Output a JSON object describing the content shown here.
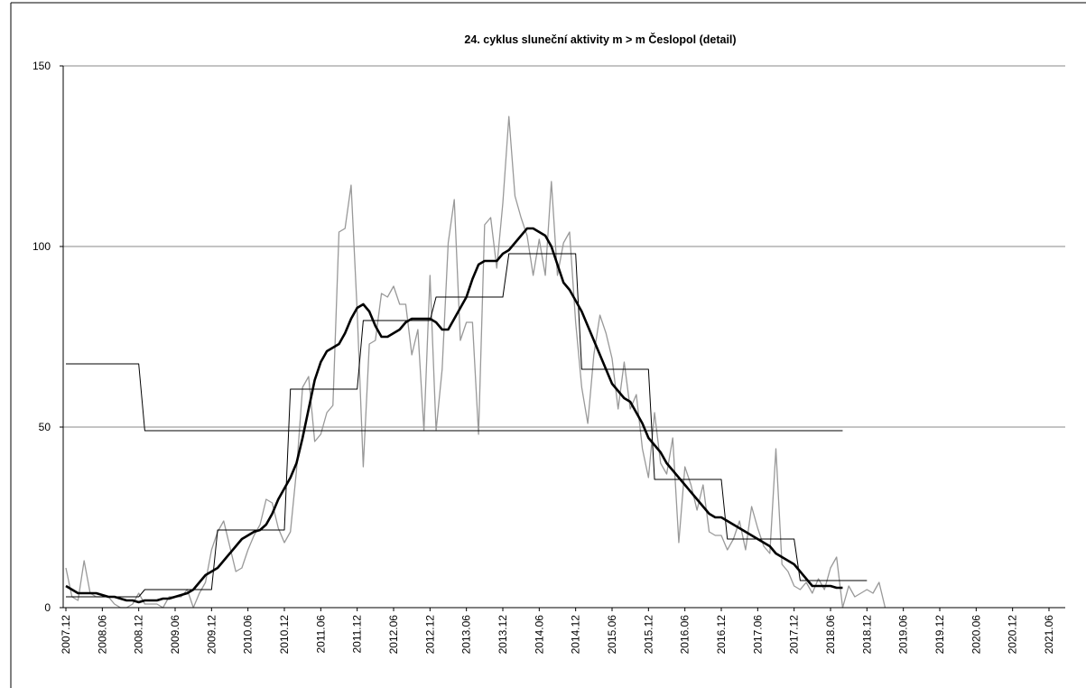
{
  "chart_data": {
    "type": "line",
    "title": "24. cyklus sluneční aktivity m > m Česlopol (detail)",
    "categories": [
      "2007.12",
      null,
      null,
      null,
      null,
      null,
      "2008.06",
      null,
      null,
      null,
      null,
      null,
      "2008.12",
      null,
      null,
      null,
      null,
      null,
      "2009.06",
      null,
      null,
      null,
      null,
      null,
      "2009.12",
      null,
      null,
      null,
      null,
      null,
      "2010.06",
      null,
      null,
      null,
      null,
      null,
      "2010.12",
      null,
      null,
      null,
      null,
      null,
      "2011.06",
      null,
      null,
      null,
      null,
      null,
      "2011.12",
      null,
      null,
      null,
      null,
      null,
      "2012.06",
      null,
      null,
      null,
      null,
      null,
      "2012.12",
      null,
      null,
      null,
      null,
      null,
      "2013.06",
      null,
      null,
      null,
      null,
      null,
      "2013.12",
      null,
      null,
      null,
      null,
      null,
      "2014.06",
      null,
      null,
      null,
      null,
      null,
      "2014.12",
      null,
      null,
      null,
      null,
      null,
      "2015.06",
      null,
      null,
      null,
      null,
      null,
      "2015.12",
      null,
      null,
      null,
      null,
      null,
      "2016.06",
      null,
      null,
      null,
      null,
      null,
      "2016.12",
      null,
      null,
      null,
      null,
      null,
      "2017.06",
      null,
      null,
      null,
      null,
      null,
      "2017.12",
      null,
      null,
      null,
      null,
      null,
      "2018.06",
      null,
      null,
      null,
      null,
      null,
      "2018.12",
      null,
      null,
      null,
      null,
      null,
      "2019.06",
      null,
      null,
      null,
      null,
      null,
      "2019.12",
      null,
      null,
      null,
      null,
      null,
      "2020.06",
      null,
      null,
      null,
      null,
      null,
      "2020.12",
      null,
      null,
      null,
      null,
      null,
      "2021.06"
    ],
    "ylim": [
      0,
      150
    ],
    "yticks": [
      0,
      50,
      100,
      150
    ],
    "grid": true,
    "series": [
      {
        "color": "#999999",
        "width": 1.3,
        "values": [
          11,
          3,
          2,
          13,
          4,
          3,
          3,
          3,
          1,
          0,
          0,
          1,
          4,
          1,
          1,
          1,
          0,
          3,
          3,
          3,
          5,
          0,
          4,
          7,
          16,
          21,
          24,
          17,
          10,
          11,
          16,
          20,
          23,
          30,
          29,
          22,
          18,
          21,
          38,
          61,
          64,
          46,
          48,
          54,
          56,
          104,
          105,
          117,
          82,
          39,
          73,
          74,
          87,
          86,
          89,
          84,
          84,
          70,
          77,
          49,
          92,
          49,
          66,
          101,
          113,
          74,
          79,
          79,
          48,
          106,
          108,
          94,
          112,
          136,
          114,
          108,
          103,
          92,
          102,
          92,
          118,
          92,
          101,
          104,
          79,
          61,
          51,
          70,
          81,
          76,
          69,
          55,
          68,
          55,
          59,
          44,
          36,
          54,
          40,
          37,
          47,
          18,
          39,
          34,
          27,
          34,
          21,
          20,
          20,
          16,
          19,
          24,
          16,
          28,
          22,
          17,
          15,
          44,
          12,
          10,
          6,
          5,
          7,
          4,
          8,
          5,
          11,
          14,
          0,
          6,
          3,
          4,
          5,
          4,
          7,
          0,
          null,
          null,
          null,
          null,
          null,
          null,
          null,
          null,
          null,
          null,
          null,
          null,
          null,
          null,
          null,
          null,
          null,
          null,
          null,
          null,
          null,
          null,
          null,
          null,
          null,
          null,
          null
        ]
      },
      {
        "color": "#000000",
        "width": 1,
        "values": [
          67.5,
          67.5,
          67.5,
          67.5,
          67.5,
          67.5,
          67.5,
          67.5,
          67.5,
          67.5,
          67.5,
          67.5,
          67.5,
          49,
          49,
          49,
          49,
          49,
          49,
          49,
          49,
          49,
          49,
          49,
          49,
          49,
          49,
          49,
          49,
          49,
          49,
          49,
          49,
          49,
          49,
          49,
          49,
          49,
          49,
          49,
          49,
          49,
          49,
          49,
          49,
          49,
          49,
          49,
          49,
          49,
          49,
          49,
          49,
          49,
          49,
          49,
          49,
          49,
          49,
          49,
          49,
          49,
          49,
          49,
          49,
          49,
          49,
          49,
          49,
          49,
          49,
          49,
          49,
          49,
          49,
          49,
          49,
          49,
          49,
          49,
          49,
          49,
          49,
          49,
          49,
          49,
          49,
          49,
          49,
          49,
          49,
          49,
          49,
          49,
          49,
          49,
          49,
          49,
          49,
          49,
          49,
          49,
          49,
          49,
          49,
          49,
          49,
          49,
          49,
          49,
          49,
          49,
          49,
          49,
          49,
          49,
          49,
          49,
          49,
          49,
          49,
          49,
          49,
          49,
          49,
          49,
          49,
          49,
          49,
          null,
          null,
          null,
          null,
          null,
          null,
          null,
          null,
          null,
          null,
          null,
          null,
          null,
          null,
          null,
          null,
          null,
          null,
          null,
          null,
          null,
          null,
          null,
          null,
          null,
          null,
          null,
          null,
          null,
          null,
          null,
          null,
          null,
          null
        ]
      },
      {
        "color": "#000000",
        "width": 1,
        "values": [
          3,
          3,
          3,
          3,
          3,
          3,
          3,
          3,
          3,
          3,
          3,
          3,
          3,
          5,
          5,
          5,
          5,
          5,
          5,
          5,
          5,
          5,
          5,
          5,
          5,
          21.5,
          21.5,
          21.5,
          21.5,
          21.5,
          21.5,
          21.5,
          21.5,
          21.5,
          21.5,
          21.5,
          21.5,
          60.5,
          60.5,
          60.5,
          60.5,
          60.5,
          60.5,
          60.5,
          60.5,
          60.5,
          60.5,
          60.5,
          60.5,
          79.5,
          79.5,
          79.5,
          79.5,
          79.5,
          79.5,
          79.5,
          79.5,
          79.5,
          79.5,
          79.5,
          79.5,
          86,
          86,
          86,
          86,
          86,
          86,
          86,
          86,
          86,
          86,
          86,
          86,
          98,
          98,
          98,
          98,
          98,
          98,
          98,
          98,
          98,
          98,
          98,
          98,
          66,
          66,
          66,
          66,
          66,
          66,
          66,
          66,
          66,
          66,
          66,
          66,
          35.5,
          35.5,
          35.5,
          35.5,
          35.5,
          35.5,
          35.5,
          35.5,
          35.5,
          35.5,
          35.5,
          35.5,
          19,
          19,
          19,
          19,
          19,
          19,
          19,
          19,
          19,
          19,
          19,
          19,
          7.5,
          7.5,
          7.5,
          7.5,
          7.5,
          7.5,
          7.5,
          7.5,
          7.5,
          7.5,
          7.5,
          7.5,
          null,
          null,
          null,
          null,
          null,
          null,
          null,
          null,
          null,
          null,
          null,
          null,
          null,
          null,
          null,
          null,
          null,
          null,
          null,
          null,
          null,
          null,
          null,
          null,
          null,
          null,
          null,
          null,
          null,
          null
        ]
      },
      {
        "color": "#000000",
        "width": 2.6,
        "values": [
          6,
          5,
          4,
          4,
          4,
          4,
          3.5,
          3,
          3,
          2.5,
          2,
          2,
          1.5,
          2,
          2,
          2,
          2.5,
          2.5,
          3,
          3.5,
          4,
          5,
          7,
          9,
          10,
          11,
          13,
          15,
          17,
          19,
          20,
          21,
          21.5,
          23,
          26,
          30,
          33,
          36,
          40,
          47,
          55,
          63,
          68,
          71,
          72,
          73,
          76,
          80,
          83,
          84,
          82,
          78,
          75,
          75,
          76,
          77,
          79,
          80,
          80,
          80,
          80,
          79,
          77,
          77,
          80,
          83,
          86,
          91,
          95,
          96,
          96,
          96,
          98,
          99,
          101,
          103,
          105,
          105,
          104,
          103,
          100,
          95,
          90,
          88,
          85,
          82,
          78,
          74,
          70,
          66,
          62,
          60,
          58,
          57,
          54,
          51,
          47,
          45,
          43,
          40,
          38,
          36,
          34,
          32,
          30,
          28,
          26,
          25,
          25,
          24,
          23,
          22,
          21,
          20,
          19,
          18,
          17,
          15,
          14,
          13,
          12,
          10,
          8,
          6,
          6,
          6,
          6,
          5.5,
          5.5,
          null,
          null,
          null,
          null,
          null,
          null,
          null,
          null,
          null,
          null,
          null,
          null,
          null,
          null,
          null,
          null,
          null,
          null,
          null,
          null,
          null,
          null,
          null,
          null,
          null,
          null,
          null,
          null,
          null,
          null,
          null,
          null,
          null,
          null
        ]
      }
    ]
  }
}
